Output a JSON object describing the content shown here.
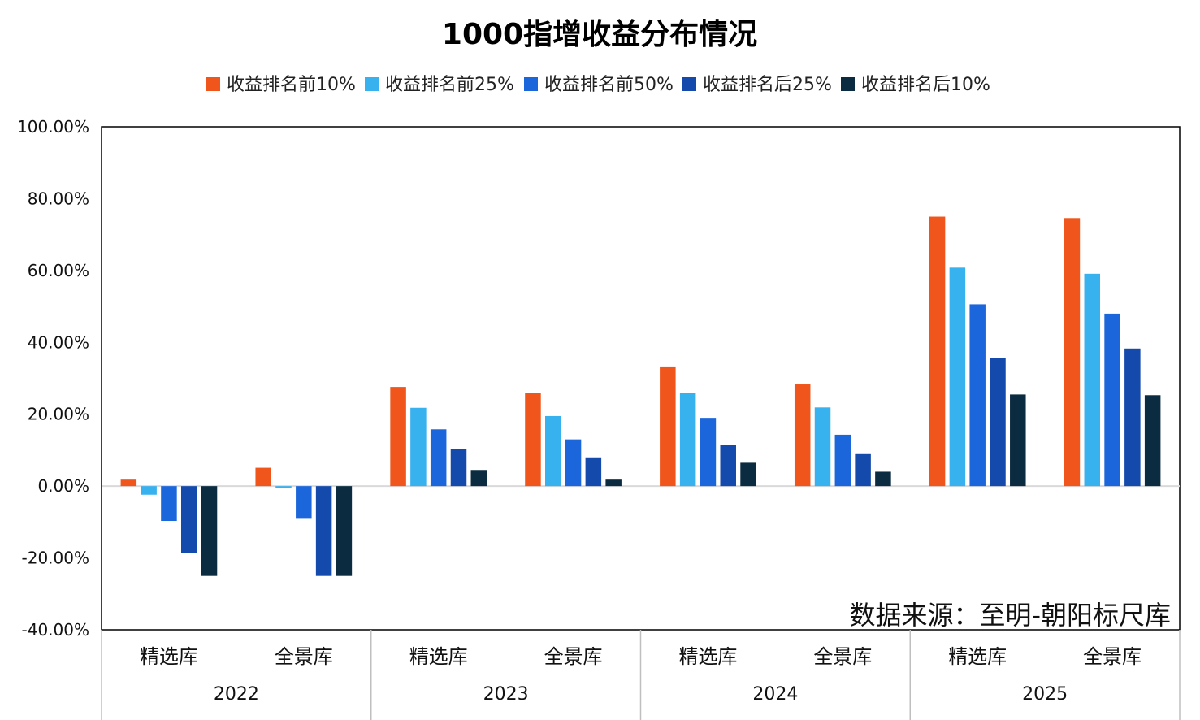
{
  "chart_data": {
    "type": "bar",
    "title": "1000指增收益分布情况",
    "xlabel": "",
    "ylabel": "",
    "ylim": [
      -40,
      100
    ],
    "yticks": [
      "100.00%",
      "80.00%",
      "60.00%",
      "40.00%",
      "20.00%",
      "0.00%",
      "-20.00%",
      "-40.00%"
    ],
    "ytick_values": [
      100,
      80,
      60,
      40,
      20,
      0,
      -20,
      -40
    ],
    "groups": [
      {
        "year": "2022",
        "categories": [
          "精选库",
          "全景库"
        ]
      },
      {
        "year": "2023",
        "categories": [
          "精选库",
          "全景库"
        ]
      },
      {
        "year": "2024",
        "categories": [
          "精选库",
          "全景库"
        ]
      },
      {
        "year": "2025",
        "categories": [
          "精选库",
          "全景库"
        ]
      }
    ],
    "categories": [
      "2022 精选库",
      "2022 全景库",
      "2023 精选库",
      "2023 全景库",
      "2024 精选库",
      "2024 全景库",
      "2025 精选库",
      "2025 全景库"
    ],
    "series": [
      {
        "name": "收益排名前10%",
        "color": "#f0561b",
        "values": [
          1.8,
          5.1,
          27.6,
          25.9,
          33.3,
          28.3,
          75.0,
          74.6
        ]
      },
      {
        "name": "收益排名前25%",
        "color": "#38b1ef",
        "values": [
          -2.4,
          -0.6,
          21.8,
          19.5,
          26.0,
          21.9,
          60.8,
          59.1
        ]
      },
      {
        "name": "收益排名前50%",
        "color": "#1c66dc",
        "values": [
          -9.7,
          -9.1,
          15.8,
          13.0,
          19.0,
          14.3,
          50.6,
          48.0
        ]
      },
      {
        "name": "收益排名后25%",
        "color": "#144aab",
        "values": [
          -18.6,
          -25.0,
          10.3,
          8.0,
          11.5,
          8.9,
          35.6,
          38.3
        ]
      },
      {
        "name": "收益排名后10%",
        "color": "#0a2b40",
        "values": [
          -25.0,
          -25.0,
          4.5,
          1.8,
          6.5,
          4.0,
          25.5,
          25.3
        ]
      }
    ],
    "legend_position": "top",
    "grid": false,
    "annotation": "数据来源：至明-朝阳标尺库"
  }
}
